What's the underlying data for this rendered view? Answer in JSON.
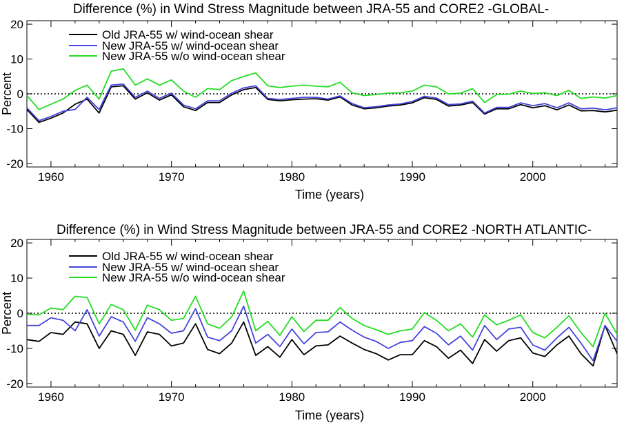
{
  "chart_data": [
    {
      "type": "line",
      "title": "Difference (%) in Wind Stress Magnitude between JRA-55 and CORE2 -GLOBAL-",
      "xlabel": "Time (years)",
      "ylabel": "Percent",
      "xlim": [
        1958,
        2007
      ],
      "ylim": [
        -21,
        21
      ],
      "xticks": [
        1960,
        1970,
        1980,
        1990,
        2000
      ],
      "yticks": [
        -20,
        -10,
        0,
        10,
        20
      ],
      "zero_line": "dotted",
      "legend_position": "top-left",
      "x": [
        1958,
        1959,
        1960,
        1961,
        1962,
        1963,
        1964,
        1965,
        1966,
        1967,
        1968,
        1969,
        1970,
        1971,
        1972,
        1973,
        1974,
        1975,
        1976,
        1977,
        1978,
        1979,
        1980,
        1981,
        1982,
        1983,
        1984,
        1985,
        1986,
        1987,
        1988,
        1989,
        1990,
        1991,
        1992,
        1993,
        1994,
        1995,
        1996,
        1997,
        1998,
        1999,
        2000,
        2001,
        2002,
        2003,
        2004,
        2005,
        2006,
        2007
      ],
      "series": [
        {
          "name": "Old JRA-55 w/ wind-ocean shear",
          "color": "#000000",
          "values": [
            -4.5,
            -8.2,
            -7,
            -5.5,
            -3,
            -1.5,
            -5.5,
            2,
            2.3,
            -1.5,
            0.3,
            -1.8,
            -0.3,
            -3.7,
            -4.8,
            -2.5,
            -2.5,
            -0.3,
            1.2,
            1.8,
            -1.6,
            -2,
            -1.7,
            -1.5,
            -1.4,
            -1.8,
            -0.9,
            -3.2,
            -4.3,
            -4,
            -3.5,
            -3.2,
            -2.6,
            -1.1,
            -1.6,
            -3.5,
            -3.2,
            -2.5,
            -5.8,
            -4.3,
            -4.3,
            -3.1,
            -4,
            -3.4,
            -4.6,
            -3.2,
            -4.9,
            -4.8,
            -5.2,
            -4.7
          ]
        },
        {
          "name": "New JRA-55 w/ wind-ocean shear",
          "color": "#4444dd",
          "values": [
            -4,
            -7.7,
            -6.5,
            -5,
            -4.5,
            -1,
            -4.5,
            2.5,
            2.8,
            -1,
            0.8,
            -1.3,
            0.2,
            -3.2,
            -4.3,
            -2,
            -2,
            0.2,
            1.7,
            2.3,
            -1.3,
            -1.6,
            -1.3,
            -1,
            -1,
            -1.5,
            -0.6,
            -2.8,
            -4,
            -3.7,
            -3.2,
            -2.9,
            -2.2,
            -0.7,
            -1.2,
            -3.1,
            -2.9,
            -2.1,
            -5.5,
            -3.9,
            -3.9,
            -2.6,
            -3.4,
            -2.8,
            -4,
            -2.6,
            -4.3,
            -4.1,
            -4.6,
            -4
          ]
        },
        {
          "name": "New JRA-55 w/o wind-ocean shear",
          "color": "#22dd22",
          "values": [
            -0.5,
            -4.5,
            -3,
            -1.5,
            1,
            2.5,
            -1.5,
            6.5,
            7.2,
            2.5,
            4.3,
            2.5,
            4,
            0.8,
            -1,
            1.5,
            1.2,
            3.8,
            5,
            6,
            2.3,
            1.8,
            2.2,
            2.5,
            2.2,
            2,
            3.3,
            0.3,
            -0.5,
            -0.2,
            0.2,
            0.3,
            0.8,
            2.5,
            2,
            0,
            0.2,
            1.5,
            -2.5,
            -0.2,
            -0.1,
            0.8,
            0.1,
            0.3,
            -0.5,
            1,
            -1.3,
            -0.9,
            -1.2,
            -0.5
          ]
        }
      ]
    },
    {
      "type": "line",
      "title": "Difference (%) in Wind Stress Magnitude between JRA-55 and CORE2 -NORTH ATLANTIC-",
      "xlabel": "Time (years)",
      "ylabel": "Percent",
      "xlim": [
        1958,
        2007
      ],
      "ylim": [
        -21,
        21
      ],
      "xticks": [
        1960,
        1970,
        1980,
        1990,
        2000
      ],
      "yticks": [
        -20,
        -10,
        0,
        10,
        20
      ],
      "zero_line": "dotted",
      "legend_position": "top-left",
      "x": [
        1958,
        1959,
        1960,
        1961,
        1962,
        1963,
        1964,
        1965,
        1966,
        1967,
        1968,
        1969,
        1970,
        1971,
        1972,
        1973,
        1974,
        1975,
        1976,
        1977,
        1978,
        1979,
        1980,
        1981,
        1982,
        1983,
        1984,
        1985,
        1986,
        1987,
        1988,
        1989,
        1990,
        1991,
        1992,
        1993,
        1994,
        1995,
        1996,
        1997,
        1998,
        1999,
        2000,
        2001,
        2002,
        2003,
        2004,
        2005,
        2006,
        2007
      ],
      "series": [
        {
          "name": "Old JRA-55 w/ wind-ocean shear",
          "color": "#000000",
          "values": [
            -7.5,
            -8,
            -5.5,
            -6,
            -2.5,
            -3,
            -10,
            -5,
            -6,
            -12,
            -5.3,
            -6,
            -9.3,
            -8.5,
            -3,
            -10.3,
            -11.5,
            -8.5,
            -2.5,
            -12,
            -9.5,
            -12.5,
            -7.5,
            -11.8,
            -9.3,
            -9,
            -6.5,
            -8.5,
            -10.3,
            -11.5,
            -13.3,
            -11.8,
            -11.8,
            -7.8,
            -9.5,
            -12.8,
            -10.5,
            -14.3,
            -7.5,
            -10.8,
            -7.8,
            -7,
            -11.3,
            -12.3,
            -9,
            -6.5,
            -11.5,
            -15,
            -3.5,
            -11.5
          ]
        },
        {
          "name": "New JRA-55 w/ wind-ocean shear",
          "color": "#4444dd",
          "values": [
            -3.5,
            -3.5,
            -1.3,
            -2,
            -5,
            1,
            -6.5,
            -1,
            -2.5,
            -8,
            -1.3,
            -3,
            -5.7,
            -5,
            1.3,
            -6.8,
            -7.8,
            -5,
            2,
            -8.5,
            -6,
            -9.5,
            -4.5,
            -8.7,
            -5.5,
            -5.3,
            -2.5,
            -4.8,
            -6.8,
            -8,
            -10,
            -8.3,
            -7.8,
            -3.8,
            -5.7,
            -9,
            -6.5,
            -10.5,
            -3.5,
            -7.5,
            -4.5,
            -4,
            -9,
            -10.5,
            -7,
            -4,
            -8.5,
            -13.5,
            -3.5,
            -8
          ]
        },
        {
          "name": "New JRA-55 w/o wind-ocean shear",
          "color": "#22dd22",
          "values": [
            -0.3,
            -0.5,
            1.5,
            1,
            4.8,
            4.5,
            -3,
            2.5,
            1,
            -4.8,
            2.3,
            1,
            -2,
            -1.5,
            4.8,
            -3,
            -4.3,
            -1,
            6.3,
            -5,
            -2.3,
            -6.3,
            -1,
            -5.2,
            -2,
            -2,
            1.6,
            -1.5,
            -3.5,
            -4.7,
            -6,
            -5,
            -4.5,
            0.2,
            -2,
            -5,
            -3,
            -6.8,
            -0.5,
            -3.3,
            -2,
            -0.5,
            -5.5,
            -7,
            -4,
            -0.7,
            -5.5,
            -9.5,
            0,
            -6
          ]
        }
      ]
    }
  ]
}
